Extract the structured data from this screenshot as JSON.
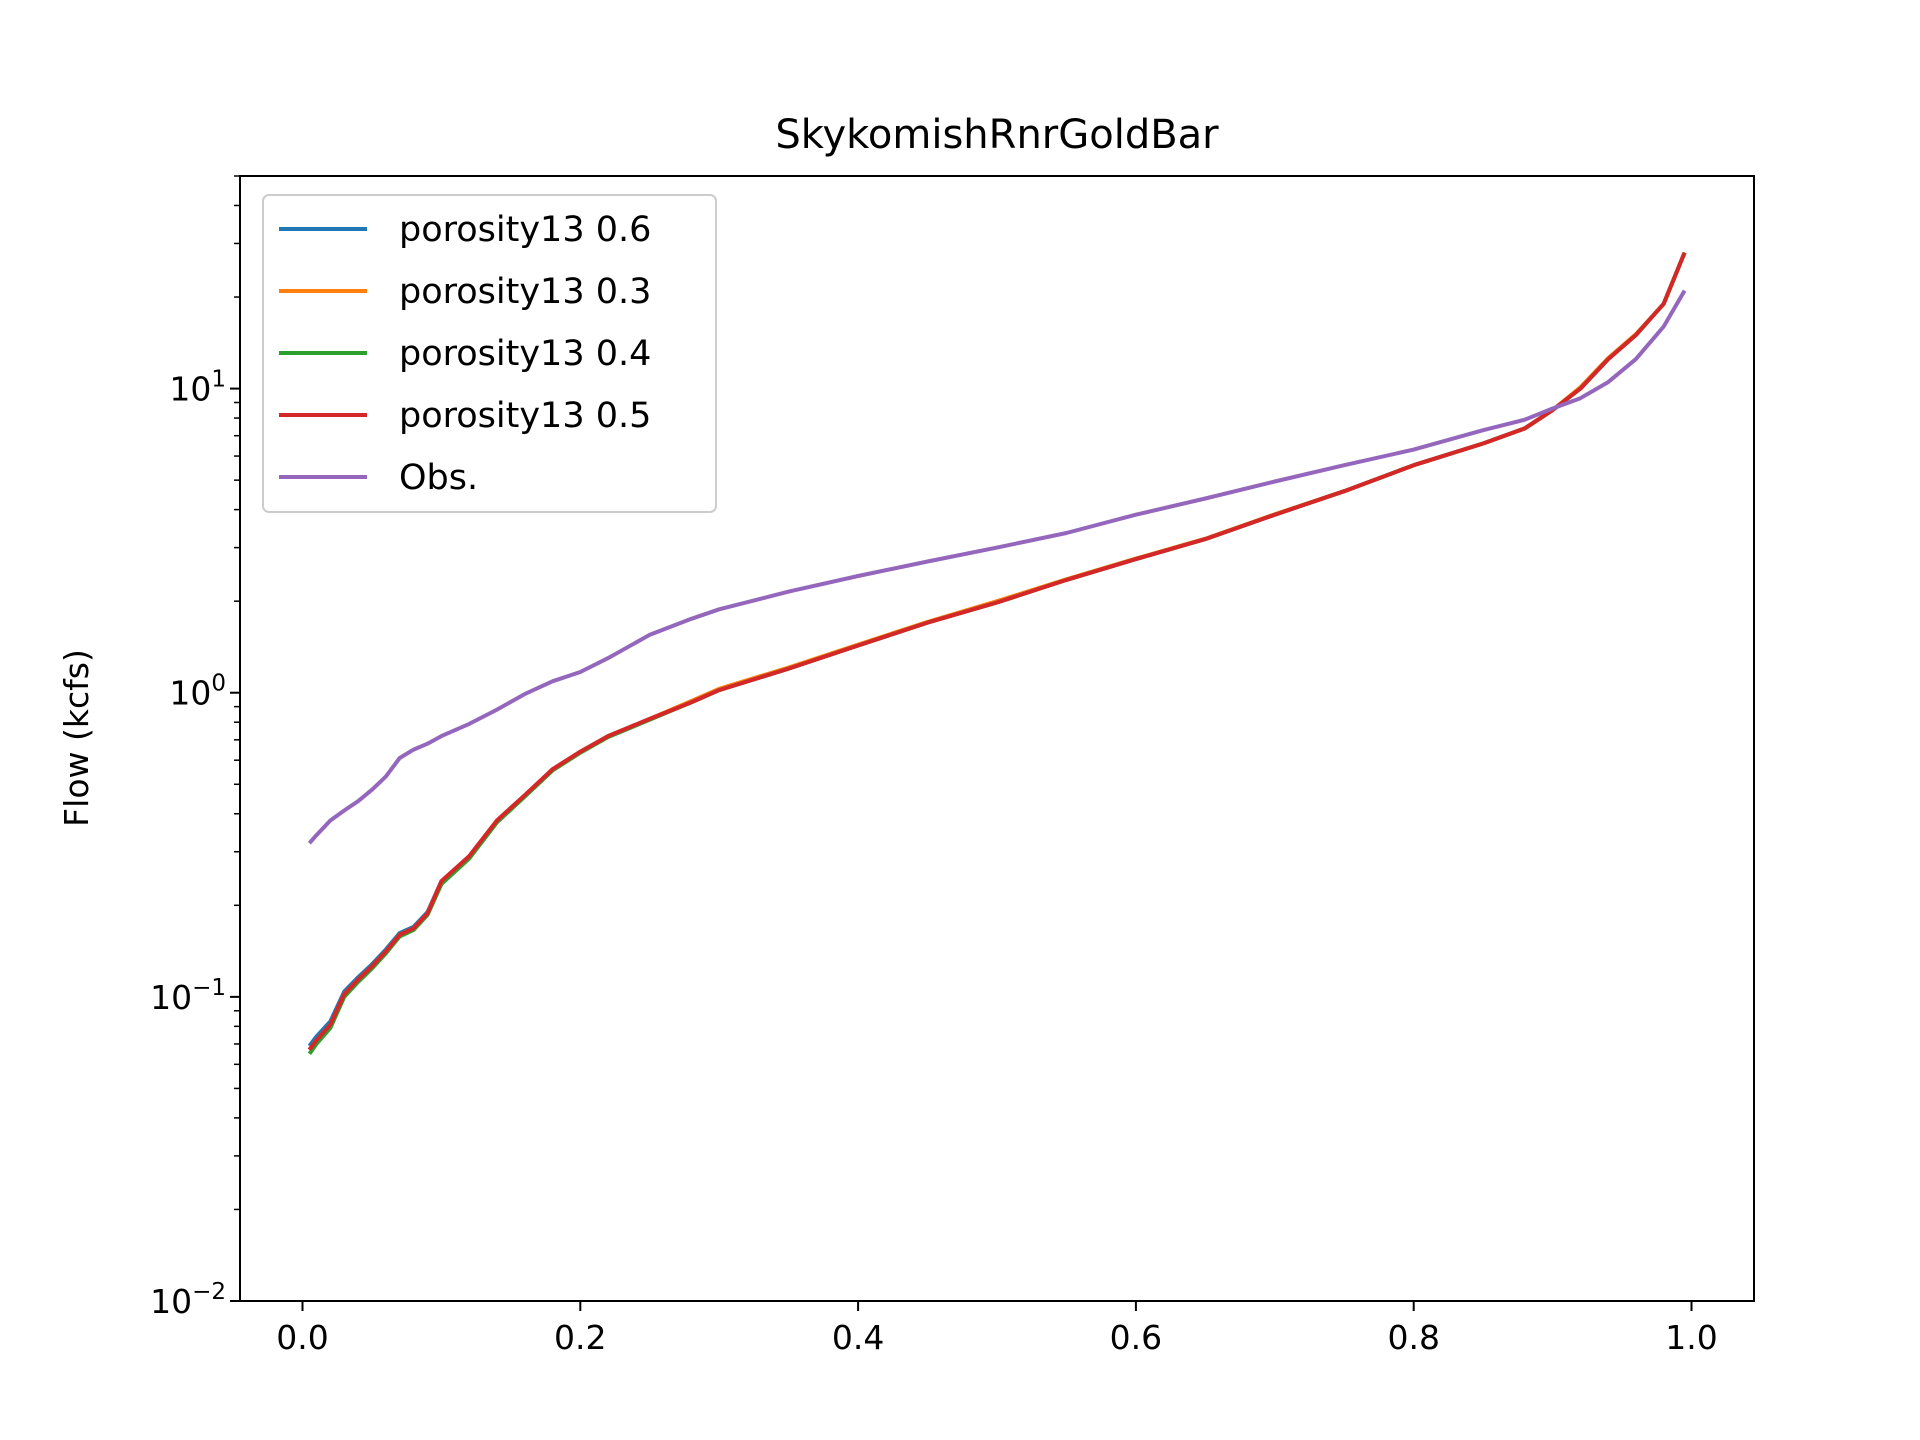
{
  "chart_data": {
    "type": "line",
    "title": "SkykomishRnrGoldBar",
    "xlabel": "",
    "ylabel": "Flow (kcfs)",
    "xlim": [
      -0.045,
      1.045
    ],
    "ylim": [
      0.01,
      50
    ],
    "yscale": "log",
    "grid": false,
    "legend_position": "top-left",
    "x_ticks": [
      "0.0",
      "0.2",
      "0.4",
      "0.6",
      "0.8",
      "1.0"
    ],
    "y_ticks": [
      {
        "value": 0.01,
        "base": "10",
        "exp": "−2"
      },
      {
        "value": 0.1,
        "base": "10",
        "exp": "−1"
      },
      {
        "value": 1,
        "base": "10",
        "exp": "0"
      },
      {
        "value": 10,
        "base": "10",
        "exp": "1"
      }
    ],
    "x": [
      0.005,
      0.01,
      0.02,
      0.03,
      0.04,
      0.05,
      0.06,
      0.07,
      0.08,
      0.09,
      0.1,
      0.12,
      0.14,
      0.16,
      0.18,
      0.2,
      0.22,
      0.25,
      0.28,
      0.3,
      0.35,
      0.4,
      0.45,
      0.5,
      0.55,
      0.6,
      0.65,
      0.7,
      0.75,
      0.8,
      0.85,
      0.88,
      0.9,
      0.92,
      0.94,
      0.96,
      0.98,
      0.995
    ],
    "series": [
      {
        "name": "porosity13 0.6",
        "color": "#1f77b4",
        "values": [
          0.069,
          0.074,
          0.083,
          0.104,
          0.116,
          0.128,
          0.143,
          0.162,
          0.17,
          0.19,
          0.24,
          0.29,
          0.38,
          0.46,
          0.56,
          0.64,
          0.72,
          0.82,
          0.93,
          1.02,
          1.2,
          1.43,
          1.7,
          1.98,
          2.35,
          2.75,
          3.2,
          3.85,
          4.6,
          5.6,
          6.6,
          7.4,
          8.5,
          10.0,
          12.5,
          15.0,
          19.0,
          28.0
        ]
      },
      {
        "name": "porosity13 0.3",
        "color": "#ff7f0e",
        "values": [
          0.067,
          0.072,
          0.081,
          0.102,
          0.114,
          0.126,
          0.141,
          0.16,
          0.168,
          0.188,
          0.24,
          0.29,
          0.38,
          0.46,
          0.56,
          0.64,
          0.72,
          0.82,
          0.94,
          1.03,
          1.21,
          1.44,
          1.71,
          2.0,
          2.36,
          2.76,
          3.21,
          3.86,
          4.6,
          5.6,
          6.6,
          7.4,
          8.5,
          10.1,
          12.6,
          15.1,
          19.0,
          28.0
        ]
      },
      {
        "name": "porosity13 0.4",
        "color": "#2ca02c",
        "values": [
          0.065,
          0.07,
          0.079,
          0.1,
          0.112,
          0.124,
          0.139,
          0.158,
          0.166,
          0.186,
          0.235,
          0.285,
          0.375,
          0.455,
          0.555,
          0.635,
          0.715,
          0.815,
          0.93,
          1.02,
          1.2,
          1.43,
          1.7,
          1.98,
          2.35,
          2.75,
          3.2,
          3.85,
          4.6,
          5.6,
          6.6,
          7.4,
          8.5,
          10.0,
          12.5,
          15.0,
          19.0,
          28.0
        ]
      },
      {
        "name": "porosity13 0.5",
        "color": "#d62728",
        "values": [
          0.067,
          0.072,
          0.081,
          0.102,
          0.114,
          0.126,
          0.141,
          0.16,
          0.168,
          0.188,
          0.24,
          0.29,
          0.38,
          0.46,
          0.56,
          0.64,
          0.72,
          0.82,
          0.93,
          1.02,
          1.2,
          1.43,
          1.7,
          1.98,
          2.35,
          2.75,
          3.2,
          3.85,
          4.6,
          5.6,
          6.6,
          7.4,
          8.5,
          10.0,
          12.5,
          15.0,
          19.0,
          28.0
        ]
      },
      {
        "name": "Obs.",
        "color": "#9467bd",
        "values": [
          0.32,
          0.34,
          0.38,
          0.41,
          0.44,
          0.48,
          0.53,
          0.61,
          0.65,
          0.68,
          0.72,
          0.79,
          0.88,
          0.99,
          1.09,
          1.17,
          1.3,
          1.55,
          1.75,
          1.88,
          2.15,
          2.42,
          2.7,
          3.0,
          3.35,
          3.85,
          4.35,
          4.95,
          5.6,
          6.3,
          7.3,
          7.9,
          8.6,
          9.3,
          10.5,
          12.5,
          16.0,
          21.0
        ]
      }
    ]
  }
}
